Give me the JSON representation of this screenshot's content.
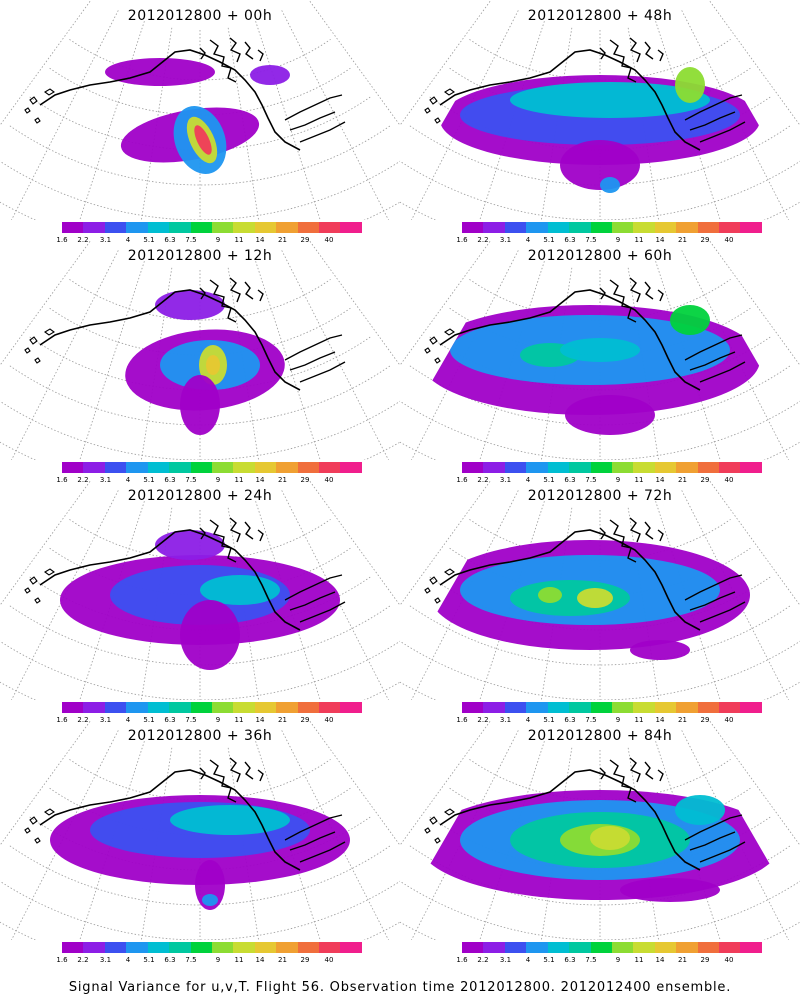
{
  "panels": [
    {
      "title": "2012012800 + 00h",
      "lead": 0
    },
    {
      "title": "2012012800 + 48h",
      "lead": 48
    },
    {
      "title": "2012012800 + 12h",
      "lead": 12
    },
    {
      "title": "2012012800 + 60h",
      "lead": 60
    },
    {
      "title": "2012012800 + 24h",
      "lead": 24
    },
    {
      "title": "2012012800 + 72h",
      "lead": 72
    },
    {
      "title": "2012012800 + 36h",
      "lead": 36
    },
    {
      "title": "2012012800 + 84h",
      "lead": 84
    }
  ],
  "colorbar": {
    "labels": [
      "1.6",
      "2.2",
      "3.1",
      "4",
      "5.1",
      "6.3",
      "7.5",
      "9",
      "11",
      "14",
      "21",
      "29",
      "40"
    ],
    "colors": [
      "#a000c8",
      "#8c1ee6",
      "#3c50f0",
      "#1e96f0",
      "#00bed2",
      "#00c8a0",
      "#00d23c",
      "#8cdc32",
      "#c8dc32",
      "#e6c832",
      "#f0a032",
      "#f06e3c",
      "#f03c5a",
      "#f01e8c"
    ]
  },
  "caption": "Signal Variance for u,v,T. Flight 56. Observation time 2012012800. 2012012400 ensemble."
}
